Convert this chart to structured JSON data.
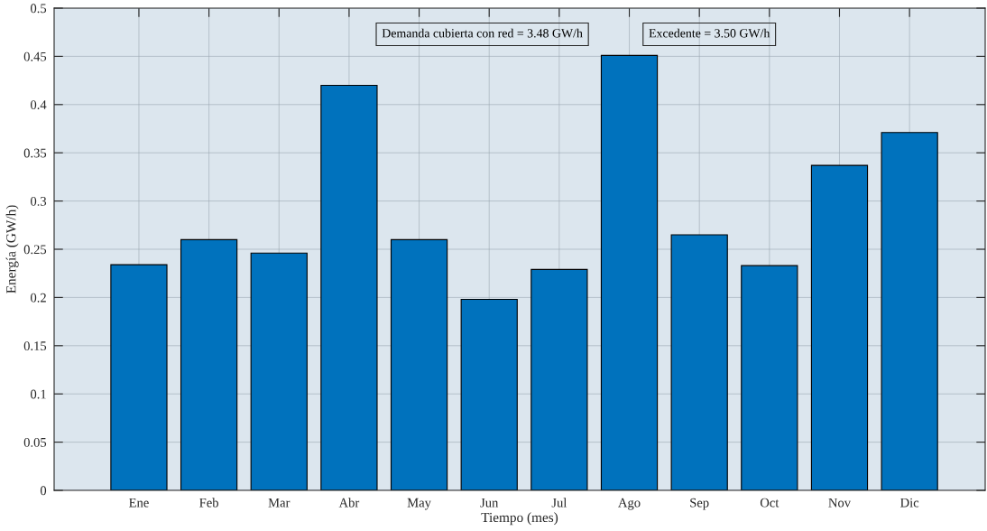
{
  "chart_data": {
    "type": "bar",
    "xlabel": "Tiempo (mes)",
    "ylabel": "Energía (GW/h)",
    "categories": [
      "Ene",
      "Feb",
      "Mar",
      "Abr",
      "May",
      "Jun",
      "Jul",
      "Ago",
      "Sep",
      "Oct",
      "Nov",
      "Dic"
    ],
    "values": [
      0.234,
      0.26,
      0.246,
      0.42,
      0.26,
      0.198,
      0.229,
      0.451,
      0.265,
      0.233,
      0.337,
      0.371
    ],
    "color": "#0072bd",
    "ylim": [
      0,
      0.5
    ],
    "yticks": [
      0,
      0.05,
      0.1,
      0.15,
      0.2,
      0.25,
      0.3,
      0.35,
      0.4,
      0.45,
      0.5
    ],
    "grid": true,
    "annotations": [
      "Demanda cubierta con red = 3.48 GW/h",
      "Excedente = 3.50 GW/h"
    ]
  }
}
